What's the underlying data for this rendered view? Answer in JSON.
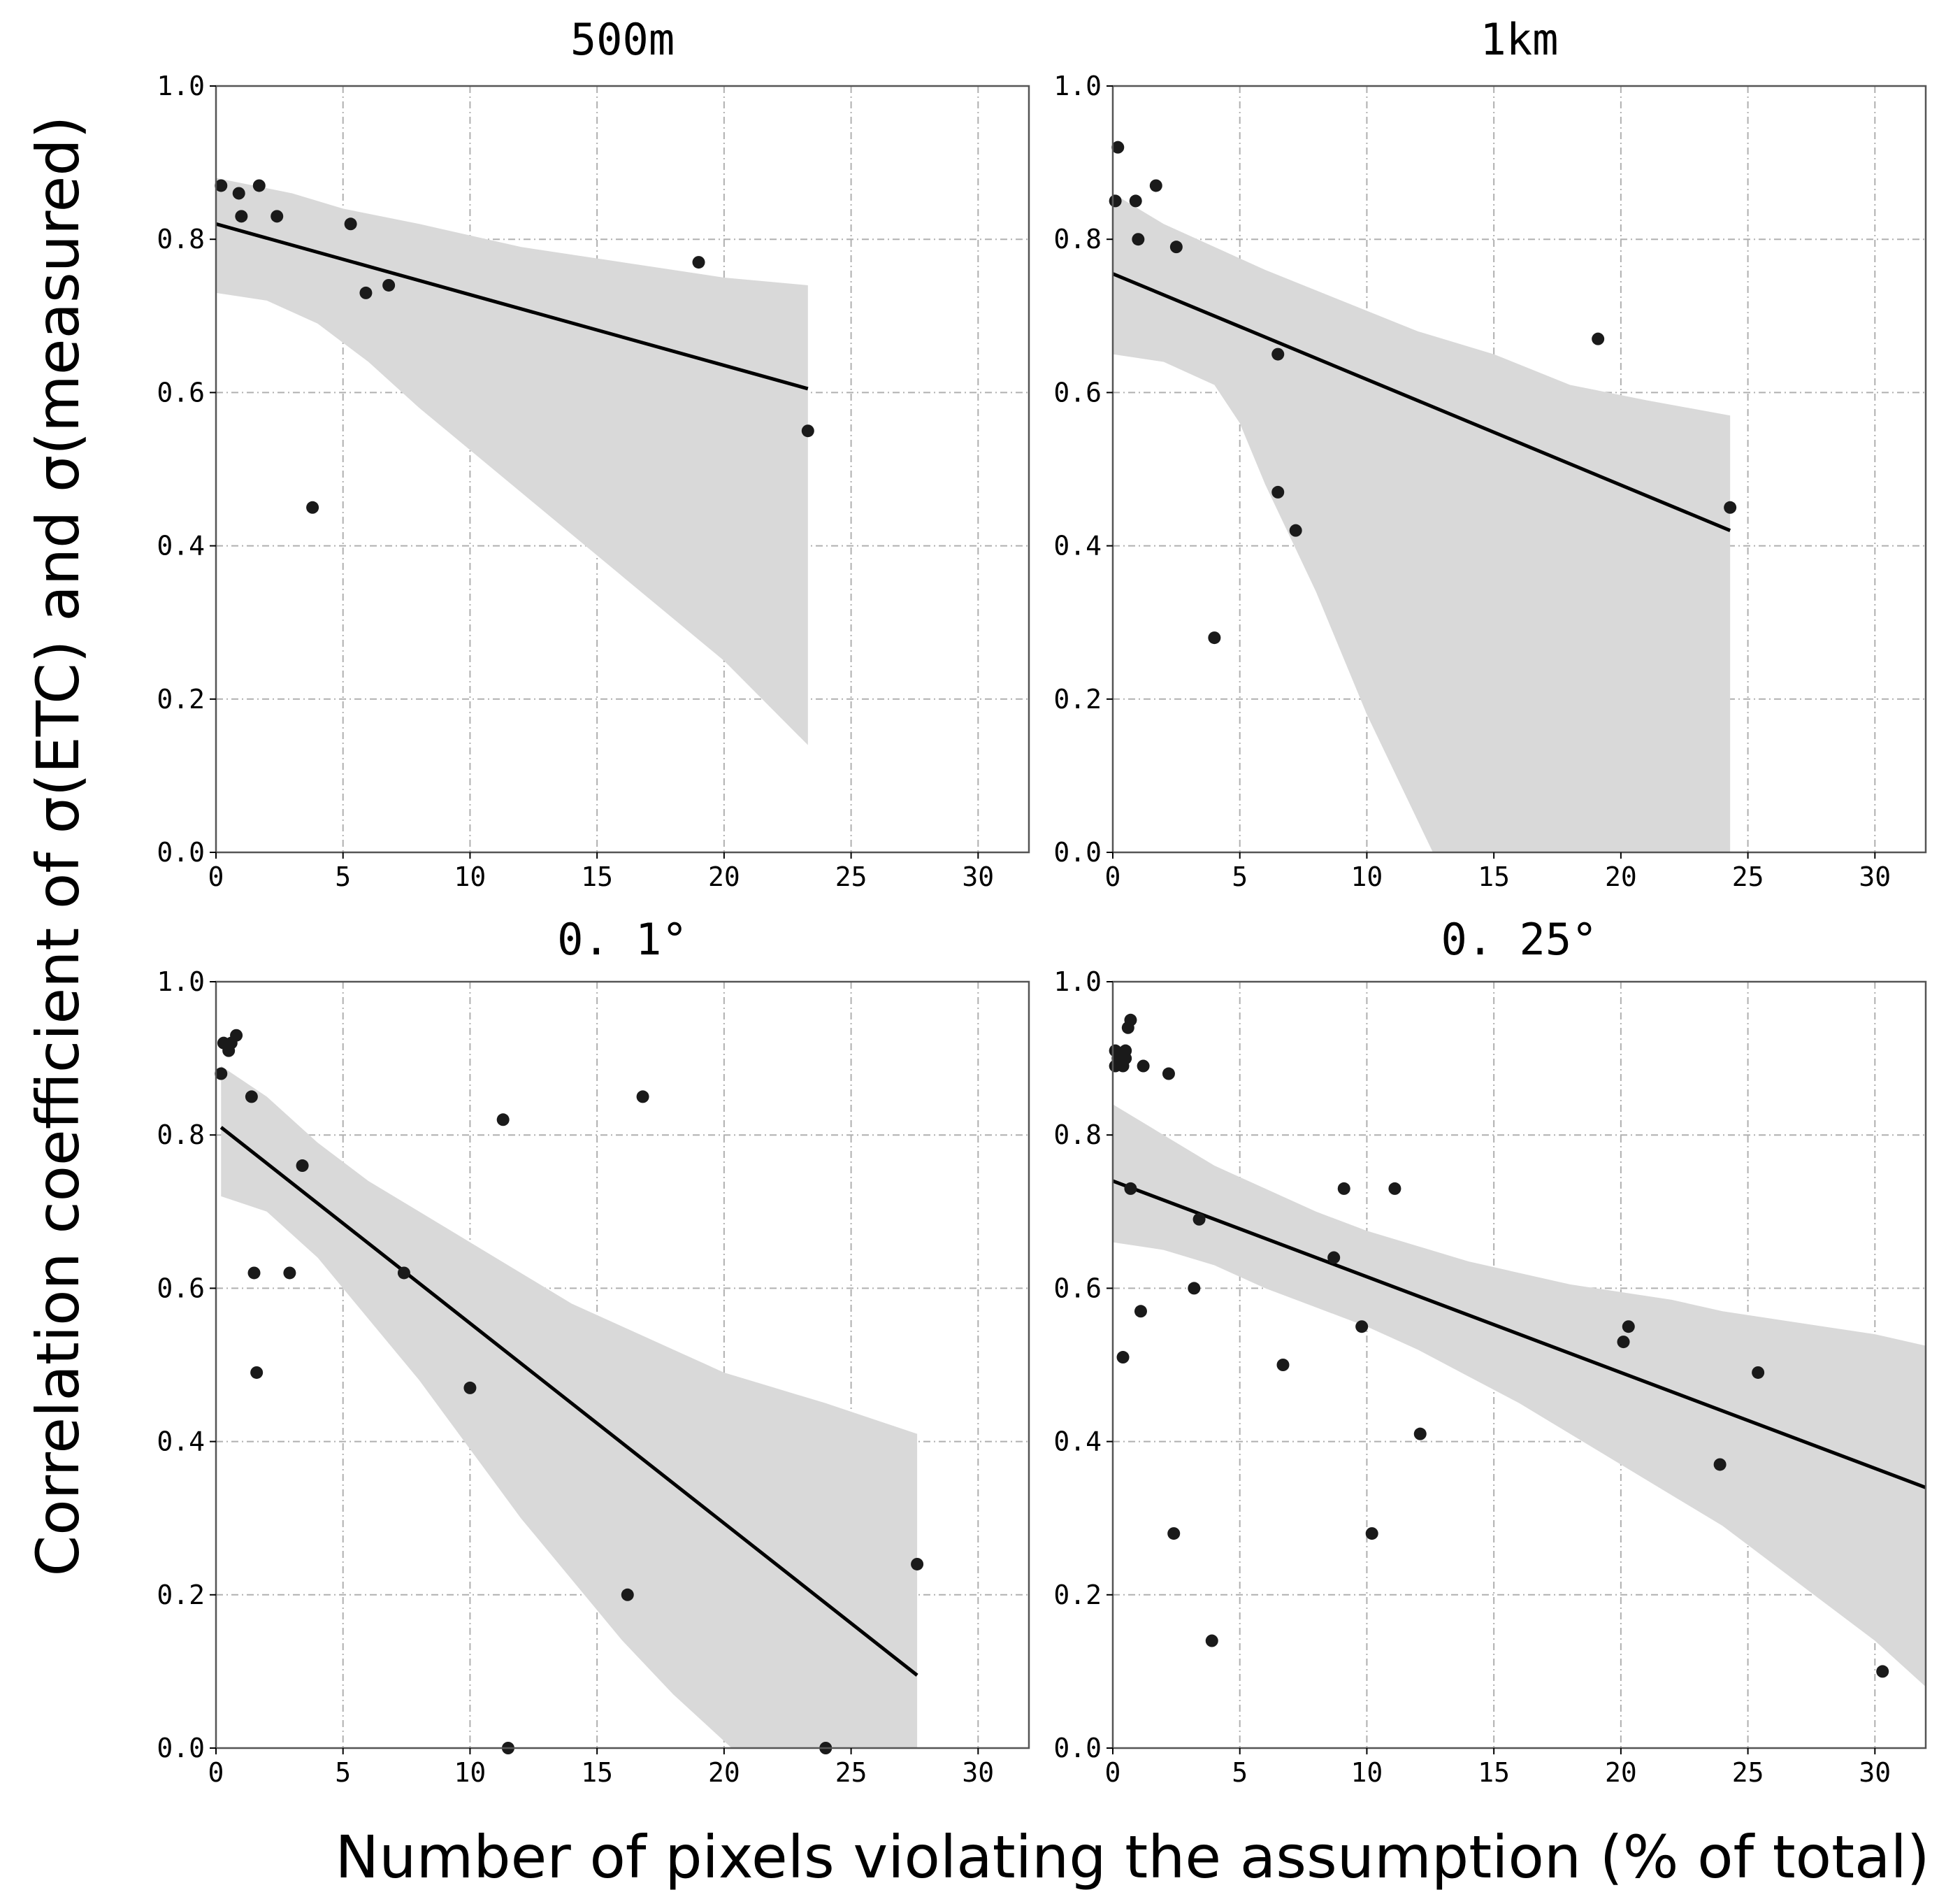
{
  "figure": {
    "ylabel": "Correlation coefficient of σ(ETC) and σ(measured)",
    "xlabel": "Number of pixels violating the assumption (% of total)"
  },
  "chart_data": [
    {
      "type": "scatter",
      "title": "500m",
      "xlim": [
        0,
        32
      ],
      "ylim": [
        0,
        1
      ],
      "xticks": [
        0,
        5,
        10,
        15,
        20,
        25,
        30
      ],
      "xtick_labels": [
        "0",
        "5",
        "10",
        "15",
        "20",
        "25",
        "30"
      ],
      "yticks": [
        0,
        0.2,
        0.4,
        0.6,
        0.8,
        1.0
      ],
      "ytick_labels": [
        "0.0",
        "0.2",
        "0.4",
        "0.6",
        "0.8",
        "1.0"
      ],
      "grid": true,
      "points": [
        [
          0.2,
          0.87
        ],
        [
          0.9,
          0.86
        ],
        [
          1.0,
          0.83
        ],
        [
          1.7,
          0.87
        ],
        [
          2.4,
          0.83
        ],
        [
          3.8,
          0.45
        ],
        [
          5.3,
          0.82
        ],
        [
          5.9,
          0.73
        ],
        [
          6.8,
          0.74
        ],
        [
          19.0,
          0.77
        ],
        [
          23.3,
          0.55
        ]
      ],
      "fit_line": [
        [
          0,
          0.82
        ],
        [
          23.3,
          0.605
        ]
      ],
      "confidence_band": {
        "upper": [
          [
            0,
            0.88
          ],
          [
            3,
            0.86
          ],
          [
            5,
            0.84
          ],
          [
            8,
            0.82
          ],
          [
            12,
            0.79
          ],
          [
            16,
            0.77
          ],
          [
            20,
            0.75
          ],
          [
            23.3,
            0.74
          ]
        ],
        "lower": [
          [
            0,
            0.73
          ],
          [
            2,
            0.72
          ],
          [
            4,
            0.69
          ],
          [
            6,
            0.64
          ],
          [
            8,
            0.58
          ],
          [
            12,
            0.47
          ],
          [
            16,
            0.36
          ],
          [
            20,
            0.25
          ],
          [
            23.3,
            0.14
          ]
        ]
      }
    },
    {
      "type": "scatter",
      "title": "1km",
      "xlim": [
        0,
        32
      ],
      "ylim": [
        0,
        1
      ],
      "xticks": [
        0,
        5,
        10,
        15,
        20,
        25,
        30
      ],
      "xtick_labels": [
        "0",
        "5",
        "10",
        "15",
        "20",
        "25",
        "30"
      ],
      "yticks": [
        0,
        0.2,
        0.4,
        0.6,
        0.8,
        1.0
      ],
      "ytick_labels": [
        "0.0",
        "0.2",
        "0.4",
        "0.6",
        "0.8",
        "1.0"
      ],
      "grid": true,
      "points": [
        [
          0.1,
          0.85
        ],
        [
          0.2,
          0.92
        ],
        [
          0.9,
          0.85
        ],
        [
          1.0,
          0.8
        ],
        [
          1.7,
          0.87
        ],
        [
          2.5,
          0.79
        ],
        [
          4.0,
          0.28
        ],
        [
          6.5,
          0.65
        ],
        [
          6.5,
          0.47
        ],
        [
          7.2,
          0.42
        ],
        [
          19.1,
          0.67
        ],
        [
          24.3,
          0.45
        ]
      ],
      "fit_line": [
        [
          0,
          0.755
        ],
        [
          24.3,
          0.42
        ]
      ],
      "confidence_band": {
        "upper": [
          [
            0,
            0.86
          ],
          [
            2,
            0.82
          ],
          [
            4,
            0.79
          ],
          [
            6,
            0.76
          ],
          [
            9,
            0.72
          ],
          [
            12,
            0.68
          ],
          [
            15,
            0.65
          ],
          [
            18,
            0.61
          ],
          [
            21,
            0.59
          ],
          [
            24.3,
            0.57
          ]
        ],
        "lower": [
          [
            0,
            0.65
          ],
          [
            2,
            0.64
          ],
          [
            4,
            0.61
          ],
          [
            5,
            0.56
          ],
          [
            6,
            0.48
          ],
          [
            8,
            0.34
          ],
          [
            10,
            0.18
          ],
          [
            12.6,
            0.0
          ],
          [
            24.3,
            0.0
          ]
        ]
      }
    },
    {
      "type": "scatter",
      "title": "0. 1°",
      "xlim": [
        0,
        32
      ],
      "ylim": [
        0,
        1
      ],
      "xticks": [
        0,
        5,
        10,
        15,
        20,
        25,
        30
      ],
      "xtick_labels": [
        "0",
        "5",
        "10",
        "15",
        "20",
        "25",
        "30"
      ],
      "yticks": [
        0,
        0.2,
        0.4,
        0.6,
        0.8,
        1.0
      ],
      "ytick_labels": [
        "0.0",
        "0.2",
        "0.4",
        "0.6",
        "0.8",
        "1.0"
      ],
      "grid": true,
      "points": [
        [
          0.2,
          0.88
        ],
        [
          0.3,
          0.92
        ],
        [
          0.5,
          0.91
        ],
        [
          0.6,
          0.92
        ],
        [
          0.8,
          0.93
        ],
        [
          1.4,
          0.85
        ],
        [
          1.5,
          0.62
        ],
        [
          1.6,
          0.49
        ],
        [
          2.9,
          0.62
        ],
        [
          3.4,
          0.76
        ],
        [
          7.4,
          0.62
        ],
        [
          10.0,
          0.47
        ],
        [
          11.3,
          0.82
        ],
        [
          11.5,
          0.0
        ],
        [
          16.2,
          0.2
        ],
        [
          16.8,
          0.85
        ],
        [
          24.0,
          0.0
        ],
        [
          27.6,
          0.24
        ]
      ],
      "fit_line": [
        [
          0.2,
          0.81
        ],
        [
          27.6,
          0.095
        ]
      ],
      "confidence_band": {
        "upper": [
          [
            0.2,
            0.89
          ],
          [
            2,
            0.85
          ],
          [
            4,
            0.79
          ],
          [
            6,
            0.74
          ],
          [
            8,
            0.7
          ],
          [
            10,
            0.66
          ],
          [
            12,
            0.62
          ],
          [
            14,
            0.58
          ],
          [
            16,
            0.55
          ],
          [
            18,
            0.52
          ],
          [
            20,
            0.49
          ],
          [
            22,
            0.47
          ],
          [
            24,
            0.45
          ],
          [
            27.6,
            0.41
          ]
        ],
        "lower": [
          [
            0.2,
            0.72
          ],
          [
            2,
            0.7
          ],
          [
            4,
            0.64
          ],
          [
            6,
            0.56
          ],
          [
            8,
            0.48
          ],
          [
            10,
            0.39
          ],
          [
            12,
            0.3
          ],
          [
            14,
            0.22
          ],
          [
            16,
            0.14
          ],
          [
            18,
            0.07
          ],
          [
            20.3,
            0.0
          ],
          [
            27.6,
            0.0
          ]
        ]
      }
    },
    {
      "type": "scatter",
      "title": "0. 25°",
      "xlim": [
        0,
        32
      ],
      "ylim": [
        0,
        1
      ],
      "xticks": [
        0,
        5,
        10,
        15,
        20,
        25,
        30
      ],
      "xtick_labels": [
        "0",
        "5",
        "10",
        "15",
        "20",
        "25",
        "30"
      ],
      "yticks": [
        0,
        0.2,
        0.4,
        0.6,
        0.8,
        1.0
      ],
      "ytick_labels": [
        "0.0",
        "0.2",
        "0.4",
        "0.6",
        "0.8",
        "1.0"
      ],
      "grid": true,
      "points": [
        [
          0.1,
          0.91
        ],
        [
          0.1,
          0.89
        ],
        [
          0.2,
          0.9
        ],
        [
          0.3,
          0.9
        ],
        [
          0.4,
          0.89
        ],
        [
          0.5,
          0.91
        ],
        [
          0.5,
          0.9
        ],
        [
          0.4,
          0.51
        ],
        [
          0.6,
          0.94
        ],
        [
          0.7,
          0.95
        ],
        [
          0.7,
          0.73
        ],
        [
          1.1,
          0.57
        ],
        [
          1.2,
          0.89
        ],
        [
          2.2,
          0.88
        ],
        [
          2.4,
          0.28
        ],
        [
          3.2,
          0.6
        ],
        [
          3.4,
          0.69
        ],
        [
          3.9,
          0.14
        ],
        [
          6.7,
          0.5
        ],
        [
          8.7,
          0.64
        ],
        [
          9.1,
          0.73
        ],
        [
          9.8,
          0.55
        ],
        [
          10.2,
          0.28
        ],
        [
          11.1,
          0.73
        ],
        [
          12.1,
          0.41
        ],
        [
          20.1,
          0.53
        ],
        [
          20.3,
          0.55
        ],
        [
          23.9,
          0.37
        ],
        [
          25.4,
          0.49
        ],
        [
          30.3,
          0.1
        ]
      ],
      "fit_line": [
        [
          0,
          0.74
        ],
        [
          32,
          0.34
        ]
      ],
      "confidence_band": {
        "upper": [
          [
            0,
            0.84
          ],
          [
            2,
            0.8
          ],
          [
            4,
            0.76
          ],
          [
            6,
            0.73
          ],
          [
            8,
            0.7
          ],
          [
            10,
            0.675
          ],
          [
            12,
            0.655
          ],
          [
            14,
            0.635
          ],
          [
            16,
            0.62
          ],
          [
            18,
            0.605
          ],
          [
            20,
            0.595
          ],
          [
            22,
            0.585
          ],
          [
            24,
            0.57
          ],
          [
            26,
            0.56
          ],
          [
            28,
            0.55
          ],
          [
            30,
            0.54
          ],
          [
            32,
            0.525
          ]
        ],
        "lower": [
          [
            0,
            0.66
          ],
          [
            2,
            0.65
          ],
          [
            4,
            0.63
          ],
          [
            6,
            0.6
          ],
          [
            8,
            0.575
          ],
          [
            10,
            0.55
          ],
          [
            12,
            0.52
          ],
          [
            14,
            0.485
          ],
          [
            16,
            0.45
          ],
          [
            18,
            0.41
          ],
          [
            20,
            0.37
          ],
          [
            22,
            0.33
          ],
          [
            24,
            0.29
          ],
          [
            26,
            0.24
          ],
          [
            28,
            0.19
          ],
          [
            30,
            0.14
          ],
          [
            32,
            0.08
          ]
        ]
      }
    }
  ]
}
